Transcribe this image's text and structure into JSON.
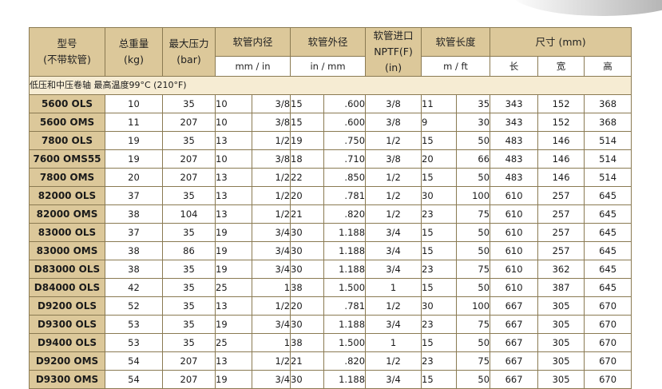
{
  "headers": {
    "model": [
      "型号",
      "(不带软管)"
    ],
    "weight": [
      "总重量",
      "(kg)"
    ],
    "pressure": [
      "最大压力",
      "(bar)"
    ],
    "inner_dia": "软管内径",
    "outer_dia": "软管外径",
    "inlet": [
      "软管进口",
      "NPTF(F)",
      "(in)"
    ],
    "length": "软管长度",
    "size": "尺寸 (mm)",
    "inner_units": "mm  /  in",
    "outer_units": "in  /  mm",
    "length_units": "m  /  ft",
    "size_l": "长",
    "size_w": "宽",
    "size_h": "高"
  },
  "note": "低压和中压卷轴  最高温度99°C (210°F)",
  "rows": [
    {
      "model": "5600 OLS",
      "weight": "10",
      "pressure": "35",
      "id_mm": "10",
      "id_in": "3/8",
      "od_a": "15",
      "od_b": ".600",
      "inlet": "3/8",
      "len_m": "11",
      "len_ft": "35",
      "l": "343",
      "w": "152",
      "h": "368"
    },
    {
      "model": "5600 OMS",
      "weight": "11",
      "pressure": "207",
      "id_mm": "10",
      "id_in": "3/8",
      "od_a": "15",
      "od_b": ".600",
      "inlet": "3/8",
      "len_m": "9",
      "len_ft": "30",
      "l": "343",
      "w": "152",
      "h": "368"
    },
    {
      "model": "7800 OLS",
      "weight": "19",
      "pressure": "35",
      "id_mm": "13",
      "id_in": "1/2",
      "od_a": "19",
      "od_b": ".750",
      "inlet": "1/2",
      "len_m": "15",
      "len_ft": "50",
      "l": "483",
      "w": "146",
      "h": "514"
    },
    {
      "model": "7600 OMS55",
      "weight": "19",
      "pressure": "207",
      "id_mm": "10",
      "id_in": "3/8",
      "od_a": "18",
      "od_b": ".710",
      "inlet": "3/8",
      "len_m": "20",
      "len_ft": "66",
      "l": "483",
      "w": "146",
      "h": "514"
    },
    {
      "model": "7800 OMS",
      "weight": "20",
      "pressure": "207",
      "id_mm": "13",
      "id_in": "1/2",
      "od_a": "22",
      "od_b": ".850",
      "inlet": "1/2",
      "len_m": "15",
      "len_ft": "50",
      "l": "483",
      "w": "146",
      "h": "514"
    },
    {
      "model": "82000 OLS",
      "weight": "37",
      "pressure": "35",
      "id_mm": "13",
      "id_in": "1/2",
      "od_a": "20",
      "od_b": ".781",
      "inlet": "1/2",
      "len_m": "30",
      "len_ft": "100",
      "l": "610",
      "w": "257",
      "h": "645"
    },
    {
      "model": "82000 OMS",
      "weight": "38",
      "pressure": "104",
      "id_mm": "13",
      "id_in": "1/2",
      "od_a": "21",
      "od_b": ".820",
      "inlet": "1/2",
      "len_m": "23",
      "len_ft": "75",
      "l": "610",
      "w": "257",
      "h": "645"
    },
    {
      "model": "83000 OLS",
      "weight": "37",
      "pressure": "35",
      "id_mm": "19",
      "id_in": "3/4",
      "od_a": "30",
      "od_b": "1.188",
      "inlet": "3/4",
      "len_m": "15",
      "len_ft": "50",
      "l": "610",
      "w": "257",
      "h": "645"
    },
    {
      "model": "83000 OMS",
      "weight": "38",
      "pressure": "86",
      "id_mm": "19",
      "id_in": "3/4",
      "od_a": "30",
      "od_b": "1.188",
      "inlet": "3/4",
      "len_m": "15",
      "len_ft": "50",
      "l": "610",
      "w": "257",
      "h": "645"
    },
    {
      "model": "D83000 OLS",
      "weight": "38",
      "pressure": "35",
      "id_mm": "19",
      "id_in": "3/4",
      "od_a": "30",
      "od_b": "1.188",
      "inlet": "3/4",
      "len_m": "23",
      "len_ft": "75",
      "l": "610",
      "w": "362",
      "h": "645"
    },
    {
      "model": "D84000 OLS",
      "weight": "42",
      "pressure": "35",
      "id_mm": "25",
      "id_in": "1",
      "od_a": "38",
      "od_b": "1.500",
      "inlet": "1",
      "len_m": "15",
      "len_ft": "50",
      "l": "610",
      "w": "387",
      "h": "645"
    },
    {
      "model": "D9200 OLS",
      "weight": "52",
      "pressure": "35",
      "id_mm": "13",
      "id_in": "1/2",
      "od_a": "20",
      "od_b": ".781",
      "inlet": "1/2",
      "len_m": "30",
      "len_ft": "100",
      "l": "667",
      "w": "305",
      "h": "670"
    },
    {
      "model": "D9300 OLS",
      "weight": "53",
      "pressure": "35",
      "id_mm": "19",
      "id_in": "3/4",
      "od_a": "30",
      "od_b": "1.188",
      "inlet": "3/4",
      "len_m": "23",
      "len_ft": "75",
      "l": "667",
      "w": "305",
      "h": "670"
    },
    {
      "model": "D9400 OLS",
      "weight": "53",
      "pressure": "35",
      "id_mm": "25",
      "id_in": "1",
      "od_a": "38",
      "od_b": "1.500",
      "inlet": "1",
      "len_m": "15",
      "len_ft": "50",
      "l": "667",
      "w": "305",
      "h": "670"
    },
    {
      "model": "D9200 OMS",
      "weight": "54",
      "pressure": "207",
      "id_mm": "13",
      "id_in": "1/2",
      "od_a": "21",
      "od_b": ".820",
      "inlet": "1/2",
      "len_m": "23",
      "len_ft": "75",
      "l": "667",
      "w": "305",
      "h": "670"
    },
    {
      "model": "D9300 OMS",
      "weight": "54",
      "pressure": "207",
      "id_mm": "19",
      "id_in": "3/4",
      "od_a": "30",
      "od_b": "1.188",
      "inlet": "3/4",
      "len_m": "15",
      "len_ft": "50",
      "l": "667",
      "w": "305",
      "h": "670"
    }
  ]
}
